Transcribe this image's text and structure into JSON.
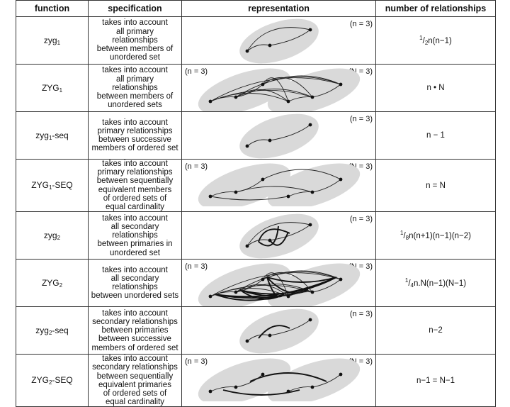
{
  "headers": {
    "function": "function",
    "specification": "specification",
    "representation": "representation",
    "relationships": "number of relationships"
  },
  "labels": {
    "n3": "(n = 3)",
    "N3": "(N = 3)"
  },
  "rows": [
    {
      "fn_base": "zyg",
      "fn_sub": "1",
      "fn_suffix": "",
      "spec": [
        "takes into account",
        "all primary",
        "relationships",
        "between members of",
        "unordered set"
      ],
      "nr_pre": "1",
      "nr_sub": "2",
      "nr_main": "n(n−1)"
    },
    {
      "fn_base": "ZYG",
      "fn_sub": "1",
      "fn_suffix": "",
      "spec": [
        "takes into account",
        "all primary",
        "relationships",
        "between members of",
        "unordered sets"
      ],
      "nr_main": "n • N"
    },
    {
      "fn_base": "zyg",
      "fn_sub": "1",
      "fn_suffix": "-seq",
      "spec": [
        "takes into account",
        "primary relationships",
        "between successive",
        "members of ordered set"
      ],
      "nr_main": "n − 1"
    },
    {
      "fn_base": "ZYG",
      "fn_sub": "1",
      "fn_suffix": "-SEQ",
      "spec": [
        "takes into account",
        "primary relationships",
        "between sequentially",
        "equivalent members",
        "of ordered sets of",
        "equal cardinality"
      ],
      "nr_main": "n = N"
    },
    {
      "fn_base": "zyg",
      "fn_sub": "2",
      "fn_suffix": "",
      "spec": [
        "takes into account",
        "all secondary",
        "relationships",
        "between primaries in",
        "unordered set"
      ],
      "nr_pre": "1",
      "nr_sub": "8",
      "nr_main": "n(n+1)(n−1)(n−2)"
    },
    {
      "fn_base": "ZYG",
      "fn_sub": "2",
      "fn_suffix": "",
      "spec": [
        "takes into account",
        "all secondary",
        "relationships",
        "between unordered sets"
      ],
      "nr_pre": "1",
      "nr_sub": "4",
      "nr_main": "n.N(n−1)(N−1)"
    },
    {
      "fn_base": "zyg",
      "fn_sub": "2",
      "fn_suffix": "-seq",
      "spec": [
        "takes into account",
        "secondary relationships",
        "between primaries",
        "between successive",
        "members of ordered set"
      ],
      "nr_main": "n−2"
    },
    {
      "fn_base": "ZYG",
      "fn_sub": "2",
      "fn_suffix": "-SEQ",
      "spec": [
        "takes into account",
        "secondary relationships",
        "between sequentially",
        "equivalent primaries",
        "of ordered sets of",
        "equal cardinality"
      ],
      "nr_main": "n−1 = N−1"
    }
  ]
}
